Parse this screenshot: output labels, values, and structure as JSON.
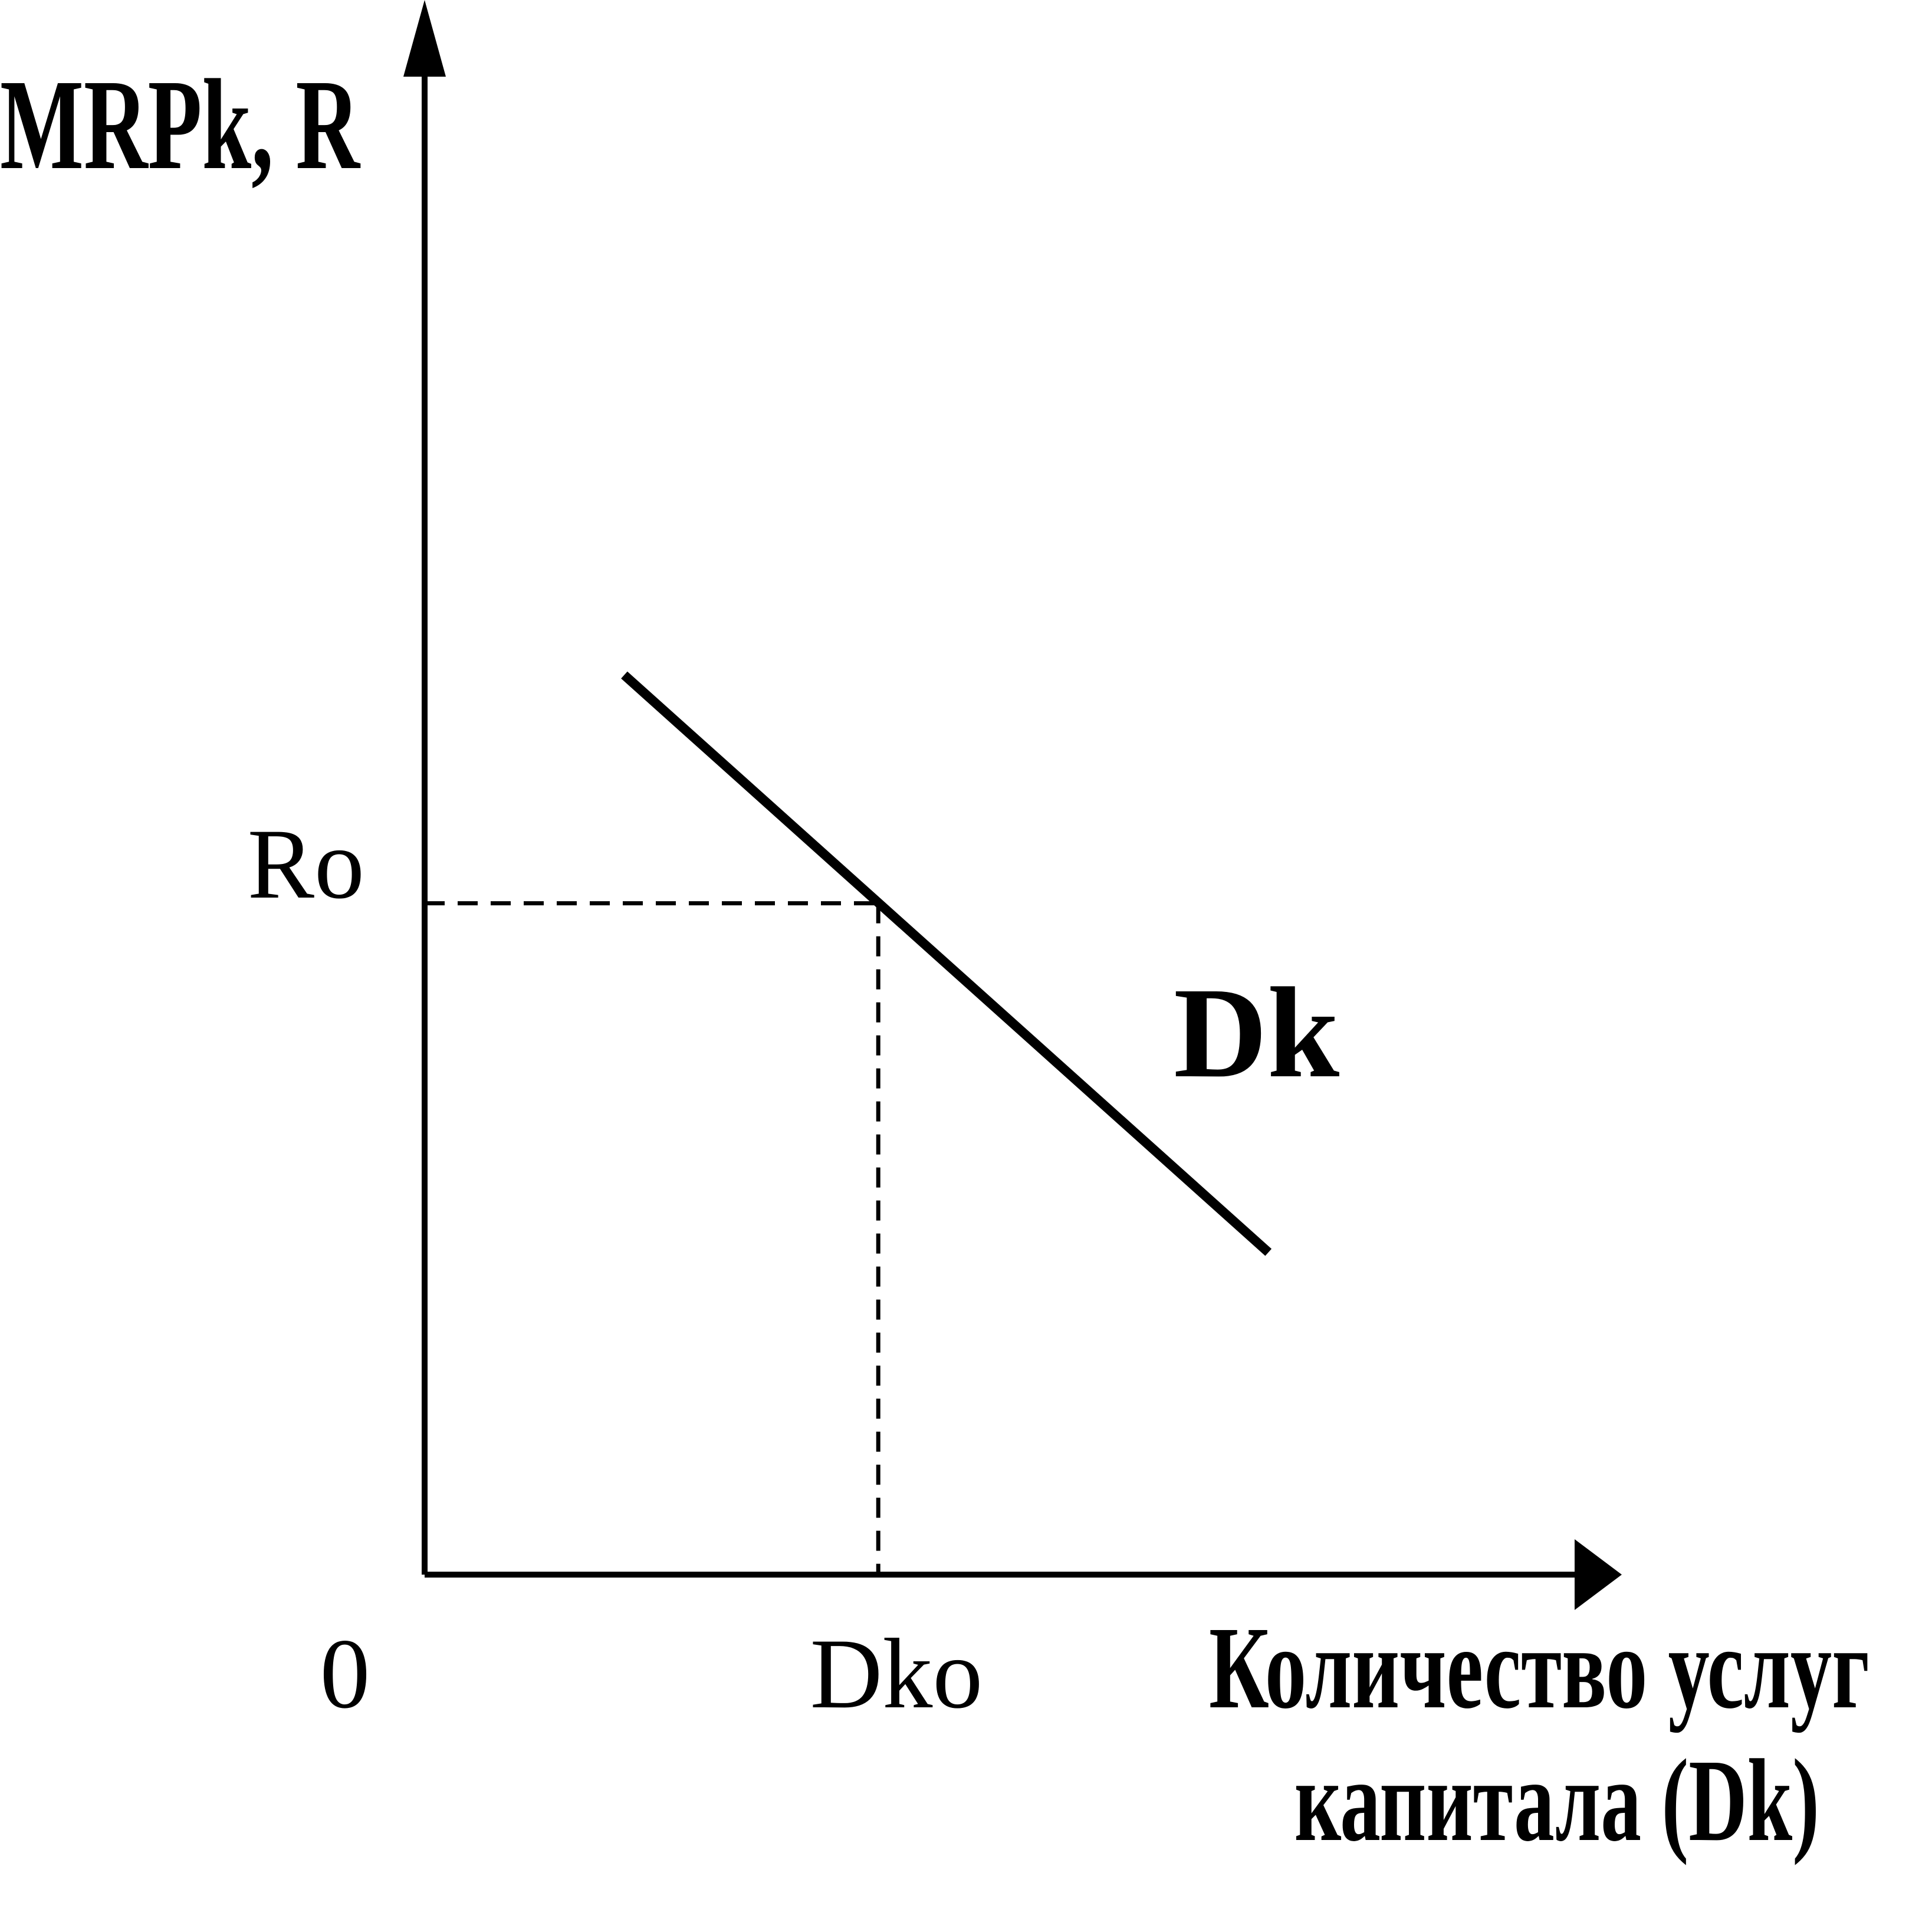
{
  "chart_data": {
    "type": "line",
    "title": "",
    "ylabel": "MRPk, R",
    "xlabel": [
      "Количество услуг",
      "капитала (Dk)"
    ],
    "origin_label": "0",
    "x_tick_labels": [
      {
        "label": "Dko",
        "at": 0.5
      }
    ],
    "y_tick_labels": [
      {
        "label": "Ro",
        "at": 0.5
      }
    ],
    "series": [
      {
        "name": "Dk",
        "x": [
          0.22,
          0.93
        ],
        "y": [
          0.67,
          0.24
        ]
      }
    ],
    "reference_point": {
      "x": 0.5,
      "y": 0.5,
      "x_label": "Dko",
      "y_label": "Ro"
    },
    "xlim": [
      0,
      1.3
    ],
    "ylim": [
      0,
      1.12
    ],
    "grid": false,
    "colors": {
      "line": "#000000",
      "background": "#ffffff"
    }
  }
}
